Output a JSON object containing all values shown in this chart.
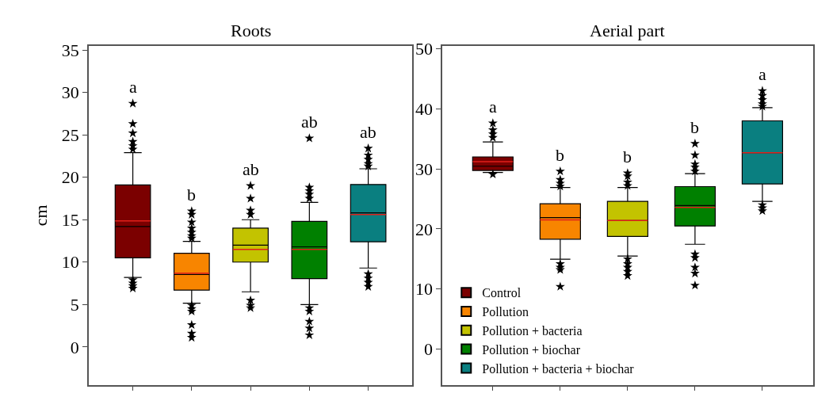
{
  "chart_data": [
    {
      "type": "box",
      "title": "Roots",
      "ylabel": "cm",
      "categories": [
        null,
        null,
        null,
        null,
        null
      ],
      "ylim": [
        -4.5,
        35.5
      ],
      "yticks": [
        0,
        5,
        10,
        15,
        20,
        25,
        30,
        35
      ],
      "tick_labels": "y",
      "legend": false,
      "marker": "star",
      "series": [
        {
          "color": "#7b0000",
          "boxes": [
            {
              "low": 8.2,
              "q1": 10.5,
              "median": 14.2,
              "q3": 19.1,
              "high": 22.9,
              "mean": 14.85,
              "outliers": [
                28.7,
                26.3,
                25.2,
                24.2,
                23.7,
                23.3,
                7.9,
                7.5,
                7.2,
                6.9
              ]
            },
            null,
            null,
            null,
            null
          ]
        },
        {
          "color": "#f88500",
          "boxes": [
            null,
            {
              "low": 5.15,
              "q1": 6.7,
              "median": 8.55,
              "q3": 11.05,
              "high": 12.45,
              "mean": 8.7,
              "outliers": [
                16.0,
                15.6,
                14.7,
                14.0,
                13.5,
                13.1,
                12.8,
                4.9,
                4.5,
                4.2,
                2.6,
                1.6,
                1.1
              ]
            },
            null,
            null,
            null
          ]
        },
        {
          "color": "#c3c300",
          "boxes": [
            null,
            null,
            {
              "low": 6.5,
              "q1": 10.0,
              "median": 12.0,
              "q3": 14.0,
              "high": 15.0,
              "mean": 11.5,
              "outliers": [
                19.0,
                17.5,
                16.1,
                15.6,
                5.5,
                4.9,
                4.6
              ]
            },
            null,
            null
          ]
        },
        {
          "color": "#008000",
          "boxes": [
            null,
            null,
            null,
            {
              "low": 5.0,
              "q1": 8.05,
              "median": 11.8,
              "q3": 14.8,
              "high": 17.05,
              "mean": 11.5,
              "outliers": [
                24.6,
                18.8,
                18.4,
                18.0,
                17.5,
                4.6,
                4.2,
                3.0,
                2.2,
                1.4
              ]
            },
            null
          ]
        },
        {
          "color": "#0a7f80",
          "boxes": [
            null,
            null,
            null,
            null,
            {
              "low": 9.3,
              "q1": 12.4,
              "median": 15.8,
              "q3": 19.15,
              "high": 21.0,
              "mean": 15.6,
              "outliers": [
                23.4,
                22.6,
                22.1,
                21.6,
                21.3,
                8.6,
                8.1,
                7.6,
                7.1
              ]
            }
          ]
        }
      ],
      "annotations": [
        "a",
        "b",
        "ab",
        "ab",
        "ab"
      ]
    },
    {
      "type": "box",
      "title": "Aerial part",
      "categories": [
        null,
        null,
        null,
        null,
        null
      ],
      "ylim": [
        -6,
        50.5
      ],
      "yticks": [
        0,
        10,
        20,
        30,
        40,
        50
      ],
      "tick_labels": "y",
      "legend": "bottom left",
      "marker": "star",
      "series": [
        {
          "name": "Control",
          "color": "#7b0000",
          "boxes": [
            {
              "low": 29.4,
              "q1": 29.75,
              "median": 30.45,
              "q3": 32.0,
              "high": 34.5,
              "mean": 31.2,
              "outliers": [
                37.6,
                36.5,
                35.8,
                35.2,
                29.1
              ]
            },
            null,
            null,
            null,
            null
          ]
        },
        {
          "name": "Pollution",
          "color": "#f88500",
          "boxes": [
            null,
            {
              "low": 14.95,
              "q1": 18.3,
              "median": 21.9,
              "q3": 24.2,
              "high": 26.9,
              "mean": 21.5,
              "outliers": [
                29.6,
                28.2,
                27.6,
                27.1,
                14.2,
                13.6,
                13.2,
                10.4
              ]
            },
            null,
            null,
            null
          ]
        },
        {
          "name": "Pollution + bacteria",
          "color": "#c3c300",
          "boxes": [
            null,
            null,
            {
              "low": 15.5,
              "q1": 18.75,
              "median": 21.4,
              "q3": 24.6,
              "high": 26.9,
              "mean": 21.4,
              "outliers": [
                29.3,
                28.8,
                27.8,
                27.2,
                15.0,
                14.2,
                13.6,
                12.9,
                12.2
              ]
            },
            null,
            null
          ]
        },
        {
          "name": "Pollution + biochar",
          "color": "#008000",
          "boxes": [
            null,
            null,
            null,
            {
              "low": 17.45,
              "q1": 20.5,
              "median": 23.9,
              "q3": 27.05,
              "high": 29.2,
              "mean": 23.6,
              "outliers": [
                34.2,
                32.3,
                30.8,
                30.3,
                29.6,
                15.8,
                15.2,
                13.6,
                12.6,
                10.6
              ]
            },
            null
          ]
        },
        {
          "name": "Pollution + bacteria + biochar",
          "color": "#0a7f80",
          "boxes": [
            null,
            null,
            null,
            null,
            {
              "low": 24.6,
              "q1": 27.5,
              "median": 32.7,
              "q3": 38.0,
              "high": 40.2,
              "mean": 32.7,
              "outliers": [
                43.0,
                42.2,
                41.5,
                40.8,
                40.4,
                24.0,
                23.5,
                23.0
              ]
            }
          ]
        }
      ],
      "annotations": [
        "a",
        "b",
        "b",
        "b",
        "a"
      ]
    }
  ]
}
